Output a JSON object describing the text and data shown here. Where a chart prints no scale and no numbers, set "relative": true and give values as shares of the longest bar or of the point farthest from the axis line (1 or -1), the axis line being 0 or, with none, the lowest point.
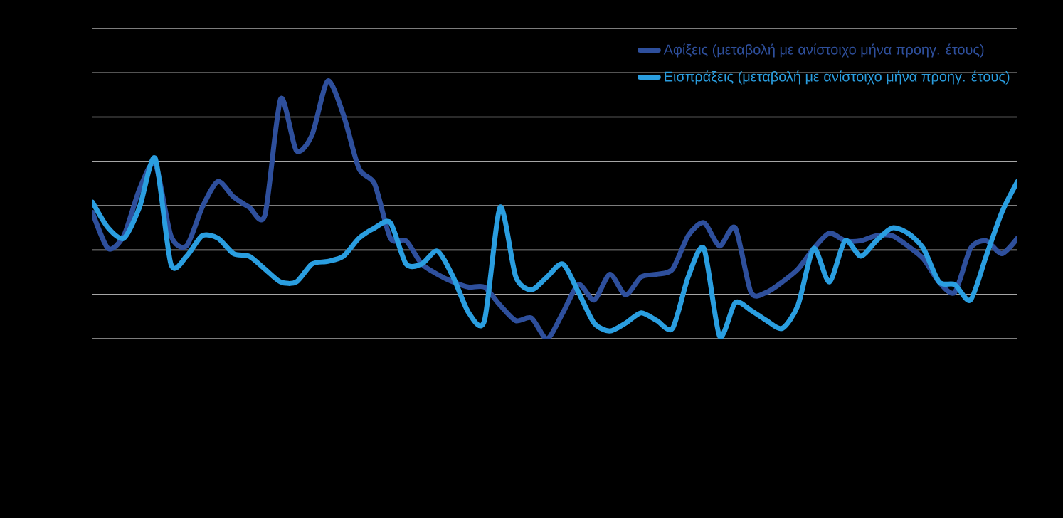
{
  "chart_data": {
    "type": "line",
    "relative": true,
    "grid": "y",
    "legend": "top right",
    "categories": [
      null,
      null,
      null,
      null,
      null,
      null,
      null,
      null,
      null,
      null,
      null,
      null,
      null,
      null,
      null,
      null,
      null,
      null,
      null,
      null,
      null,
      null,
      null,
      null,
      null,
      null,
      null,
      null,
      null,
      null,
      null,
      null,
      null,
      null,
      null,
      null,
      null,
      null,
      null,
      null,
      null,
      null,
      null,
      null,
      null,
      null,
      null,
      null,
      null,
      null,
      null,
      null,
      null,
      null,
      null,
      null,
      null,
      null,
      null,
      null
    ],
    "series": [
      {
        "name": "Αφίξεις (μεταβολή με ανίστοιχο μήνα προηγ. έτους)",
        "color": "#2e4f9c",
        "values": [
          0.49,
          0.35,
          0.4,
          0.58,
          0.68,
          0.4,
          0.36,
          0.51,
          0.61,
          0.55,
          0.51,
          0.48,
          0.93,
          0.73,
          0.79,
          1.0,
          0.87,
          0.66,
          0.6,
          0.39,
          0.38,
          0.29,
          0.25,
          0.22,
          0.2,
          0.2,
          0.13,
          0.07,
          0.08,
          0,
          0.1,
          0.21,
          0.15,
          0.25,
          0.17,
          0.24,
          0.25,
          0.27,
          0.4,
          0.45,
          0.36,
          0.43,
          0.18,
          0.18,
          0.22,
          0.27,
          0.35,
          0.41,
          0.38,
          0.38,
          0.4,
          0.4,
          0.36,
          0.31,
          0.22,
          0.18,
          0.35,
          0.38,
          0.33,
          0.39
        ]
      },
      {
        "name": "Εισπράξεις (μεταβολή με ανίστοιχο μήνα προηγ. έτους)",
        "color": "#2a9ee0",
        "values": [
          0.53,
          0.43,
          0.39,
          0.51,
          0.7,
          0.29,
          0.32,
          0.4,
          0.39,
          0.33,
          0.32,
          0.27,
          0.22,
          0.22,
          0.29,
          0.3,
          0.32,
          0.39,
          0.43,
          0.45,
          0.29,
          0.29,
          0.34,
          0.24,
          0.1,
          0.07,
          0.51,
          0.24,
          0.19,
          0.24,
          0.29,
          0.18,
          0.06,
          0.03,
          0.06,
          0.1,
          0.07,
          0.04,
          0.24,
          0.35,
          0.01,
          0.14,
          0.11,
          0.07,
          0.04,
          0.13,
          0.35,
          0.22,
          0.38,
          0.32,
          0.38,
          0.43,
          0.41,
          0.35,
          0.22,
          0.21,
          0.15,
          0.32,
          0.49,
          0.61
        ]
      }
    ]
  }
}
